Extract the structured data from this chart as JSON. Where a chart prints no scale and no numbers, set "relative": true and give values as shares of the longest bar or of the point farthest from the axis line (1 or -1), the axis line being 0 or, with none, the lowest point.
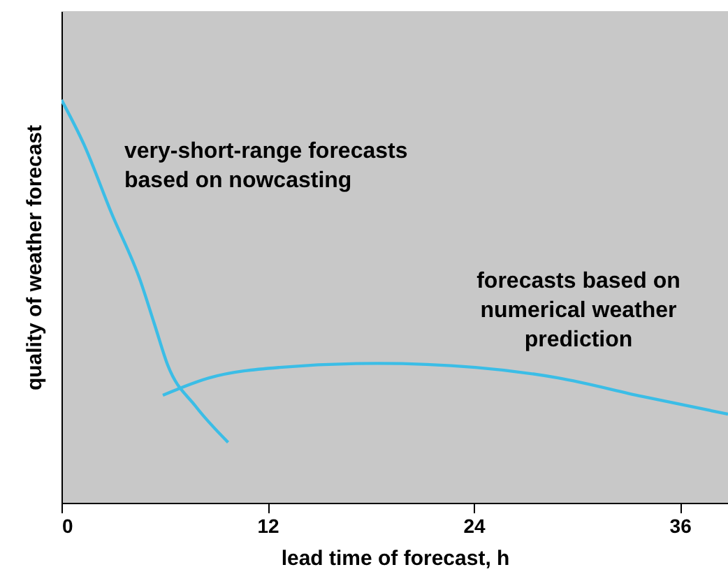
{
  "chart_data": {
    "type": "line",
    "xlabel": "lead time of forecast, h",
    "ylabel": "quality of weather forecast",
    "relative": true,
    "xlim": [
      0,
      38.8
    ],
    "xticks": [
      0,
      12,
      24,
      36
    ],
    "marker": "none",
    "line_style": "solid",
    "series": [
      {
        "name": "very-short-range forecasts\nbased on nowcasting",
        "color": "#3bbde6",
        "x": [
          0,
          1.3,
          2.9,
          4.6,
          5.4,
          6.2,
          7.8,
          9.7
        ],
        "values": [
          1.0,
          0.89,
          0.72,
          0.55,
          0.445,
          0.34,
          0.24,
          0.15
        ]
      },
      {
        "name": "forecasts based on\nnumerical weather\nprediction",
        "color": "#3bbde6",
        "x": [
          5.9,
          8.6,
          12.7,
          18.4,
          24.1,
          28.9,
          33.8,
          38.8
        ],
        "values": [
          0.267,
          0.31,
          0.336,
          0.346,
          0.336,
          0.31,
          0.264,
          0.22
        ]
      }
    ]
  }
}
